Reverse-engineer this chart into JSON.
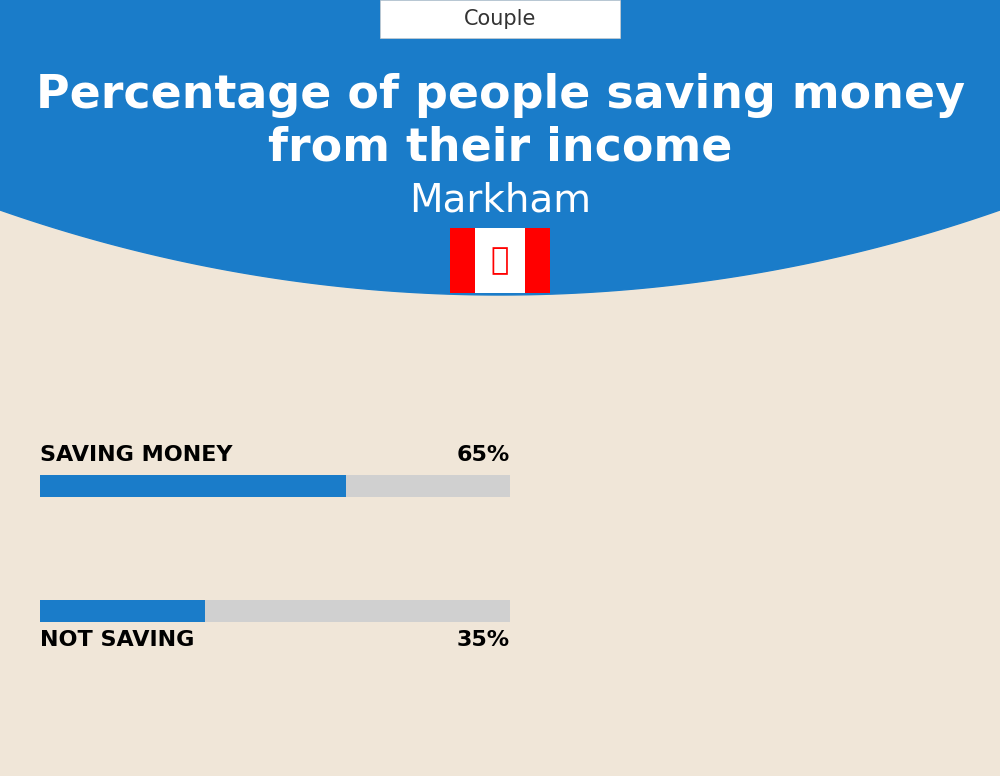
{
  "title_line1": "Percentage of people saving money",
  "title_line2": "from their income",
  "subtitle": "Markham",
  "tab_label": "Couple",
  "bg_color": "#f0e6d8",
  "blue_color": "#1a7cc9",
  "bar_bg_color": "#d0d0d0",
  "saving_label": "SAVING MONEY",
  "saving_value": 65,
  "saving_text": "65%",
  "not_saving_label": "NOT SAVING",
  "not_saving_value": 35,
  "not_saving_text": "35%"
}
